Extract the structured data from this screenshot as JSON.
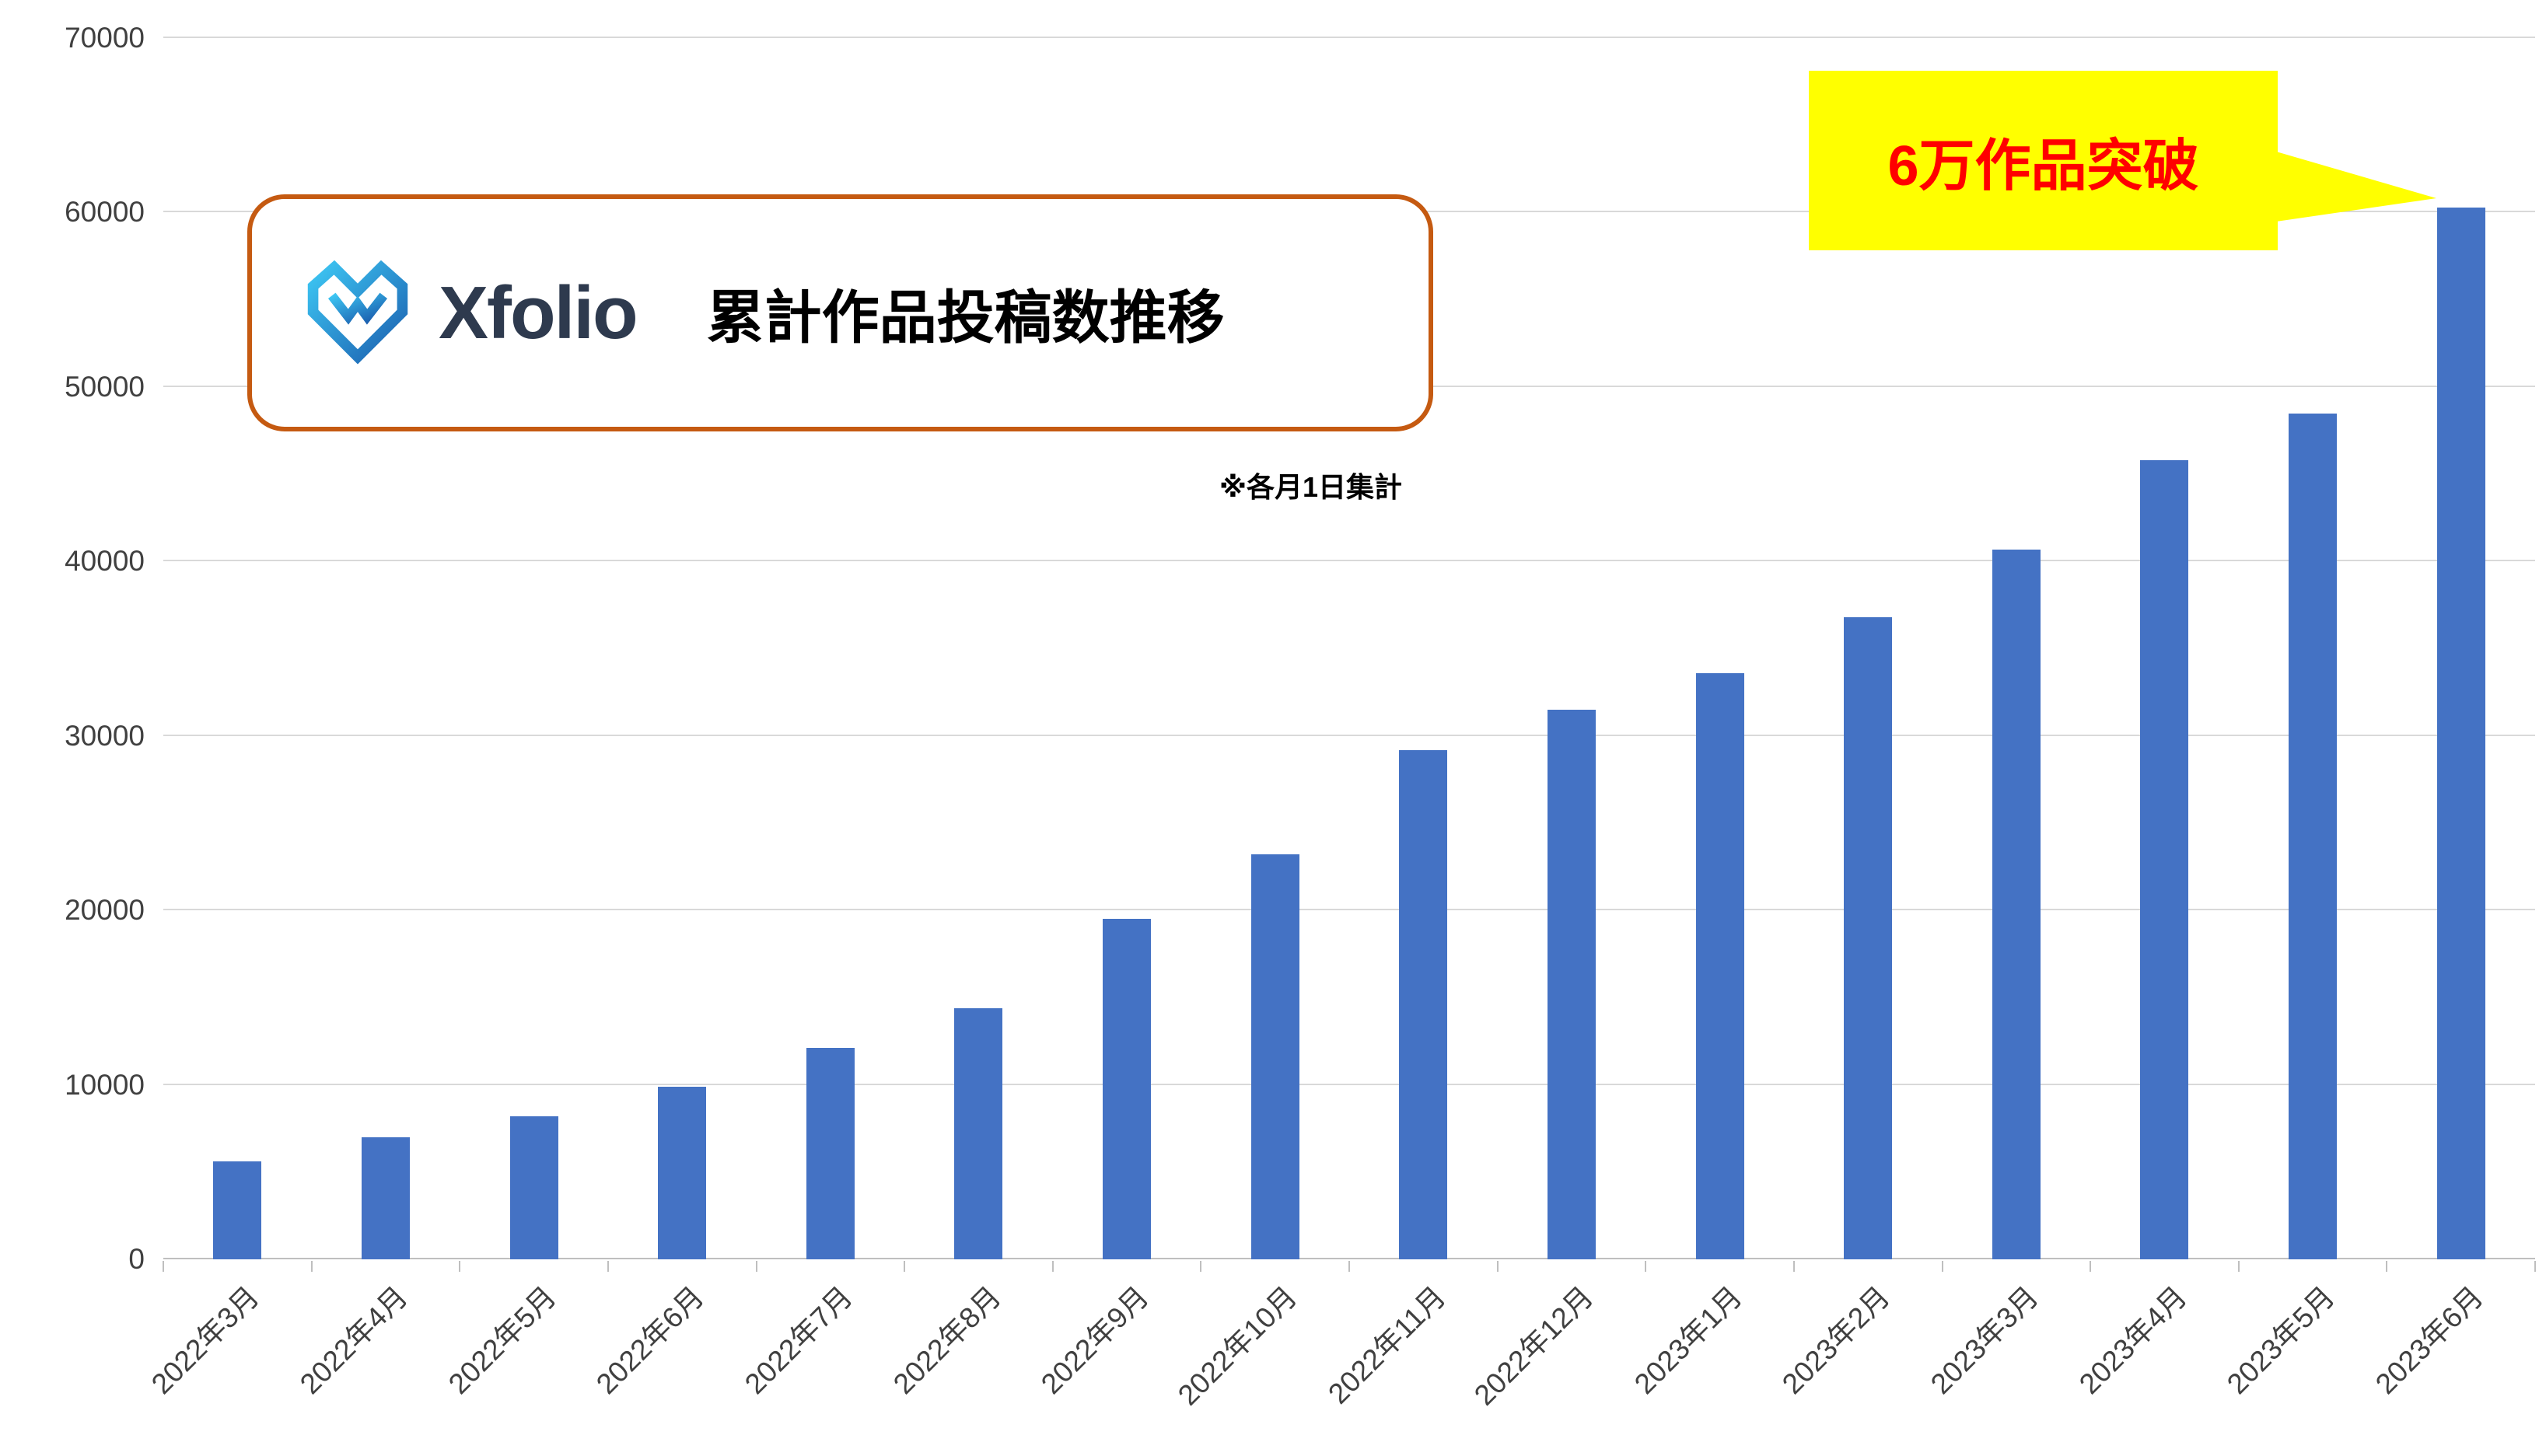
{
  "header": {
    "brand": "Xfolio",
    "title": "累計作品投稿数推移",
    "note": "※各月1日集計"
  },
  "callout": {
    "label": "6万作品突破"
  },
  "colors": {
    "bar": "#4472C4",
    "gridline": "#D9D9D9",
    "axis_line": "#BFBFBF",
    "title_box_border": "#C55A11",
    "callout_bg": "#FFFF00",
    "callout_text": "#FF0000",
    "brand_text": "#2E3A4E",
    "logo_gradient_start": "#3DC6F3",
    "logo_gradient_end": "#1B5FAF"
  },
  "chart_data": {
    "type": "bar",
    "title": "累計作品投稿数推移",
    "subtitle_note": "※各月1日集計",
    "annotation": "6万作品突破",
    "categories": [
      "2022年3月",
      "2022年4月",
      "2022年5月",
      "2022年6月",
      "2022年7月",
      "2022年8月",
      "2022年9月",
      "2022年10月",
      "2022年11月",
      "2022年12月",
      "2023年1月",
      "2023年2月",
      "2023年3月",
      "2023年4月",
      "2023年5月",
      "2023年6月"
    ],
    "values": [
      5600,
      7000,
      8200,
      9900,
      12100,
      14400,
      19500,
      23200,
      29200,
      31500,
      33600,
      36800,
      40700,
      45800,
      48500,
      60300
    ],
    "xlabel": "",
    "ylabel": "",
    "ylim": [
      0,
      70000
    ],
    "ytick_step": 10000,
    "grid": true,
    "legend": false
  }
}
